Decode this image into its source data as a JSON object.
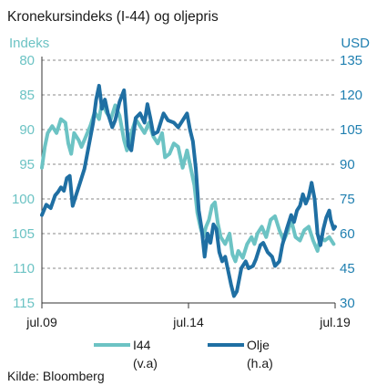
{
  "chart_data": {
    "type": "line",
    "title": "Kronekursindeks (I-44) og oljepris",
    "left_axis": {
      "label": "Indeks",
      "range": [
        80,
        115
      ],
      "inverted": true,
      "ticks": [
        "80",
        "85",
        "90",
        "95",
        "100",
        "105",
        "110",
        "115"
      ]
    },
    "right_axis": {
      "label": "USD",
      "range": [
        30,
        135
      ],
      "ticks": [
        "135",
        "120",
        "105",
        "90",
        "75",
        "60",
        "45",
        "30"
      ]
    },
    "x_axis": {
      "range": [
        "2009-07",
        "2019-07"
      ],
      "ticks": [
        "jul.09",
        "jul.14",
        "jul.19"
      ]
    },
    "grid": "dashed-horizontal",
    "legend": {
      "placement": "bottom",
      "items": [
        {
          "name": "I44",
          "sub": "(v.a)",
          "color": "#6cc3c4"
        },
        {
          "name": "Olje",
          "sub": "(h.a)",
          "color": "#1f6fa3"
        }
      ]
    },
    "source": "Kilde: Bloomberg",
    "series": [
      {
        "name": "I44",
        "axis": "left",
        "color": "#6cc3c4",
        "points": [
          [
            2009.5,
            95.5
          ],
          [
            2009.6,
            92.5
          ],
          [
            2009.7,
            90.5
          ],
          [
            2009.85,
            89.5
          ],
          [
            2010.0,
            90.5
          ],
          [
            2010.15,
            88.5
          ],
          [
            2010.3,
            89.0
          ],
          [
            2010.4,
            92.0
          ],
          [
            2010.5,
            93.5
          ],
          [
            2010.6,
            90.5
          ],
          [
            2010.75,
            91.5
          ],
          [
            2010.85,
            92.5
          ],
          [
            2011.0,
            91.0
          ],
          [
            2011.15,
            89.5
          ],
          [
            2011.3,
            87.5
          ],
          [
            2011.45,
            88.5
          ],
          [
            2011.55,
            86.0
          ],
          [
            2011.7,
            87.5
          ],
          [
            2011.85,
            88.5
          ],
          [
            2012.0,
            86.5
          ],
          [
            2012.15,
            88.0
          ],
          [
            2012.3,
            91.5
          ],
          [
            2012.4,
            93.0
          ],
          [
            2012.55,
            90.5
          ],
          [
            2012.7,
            88.5
          ],
          [
            2012.85,
            89.5
          ],
          [
            2013.0,
            90.5
          ],
          [
            2013.15,
            89.0
          ],
          [
            2013.3,
            91.0
          ],
          [
            2013.45,
            92.0
          ],
          [
            2013.6,
            90.5
          ],
          [
            2013.7,
            94.0
          ],
          [
            2013.85,
            93.5
          ],
          [
            2014.0,
            92.0
          ],
          [
            2014.15,
            92.5
          ],
          [
            2014.3,
            95.5
          ],
          [
            2014.45,
            93.0
          ],
          [
            2014.6,
            96.0
          ],
          [
            2014.7,
            98.0
          ],
          [
            2014.8,
            102.0
          ],
          [
            2014.9,
            104.0
          ],
          [
            2015.0,
            105.5
          ],
          [
            2015.1,
            104.0
          ],
          [
            2015.2,
            103.0
          ],
          [
            2015.3,
            101.0
          ],
          [
            2015.4,
            100.5
          ],
          [
            2015.5,
            103.5
          ],
          [
            2015.6,
            105.5
          ],
          [
            2015.75,
            106.5
          ],
          [
            2015.9,
            105.0
          ],
          [
            2016.0,
            108.0
          ],
          [
            2016.1,
            109.0
          ],
          [
            2016.2,
            107.5
          ],
          [
            2016.35,
            108.5
          ],
          [
            2016.5,
            106.5
          ],
          [
            2016.65,
            105.5
          ],
          [
            2016.75,
            106.5
          ],
          [
            2016.85,
            105.0
          ],
          [
            2017.0,
            104.0
          ],
          [
            2017.15,
            105.5
          ],
          [
            2017.3,
            103.0
          ],
          [
            2017.45,
            102.5
          ],
          [
            2017.6,
            104.5
          ],
          [
            2017.75,
            106.0
          ],
          [
            2017.9,
            104.5
          ],
          [
            2018.0,
            103.0
          ],
          [
            2018.15,
            105.5
          ],
          [
            2018.3,
            106.0
          ],
          [
            2018.45,
            104.5
          ],
          [
            2018.6,
            104.0
          ],
          [
            2018.75,
            106.0
          ],
          [
            2018.9,
            107.5
          ],
          [
            2019.0,
            105.5
          ],
          [
            2019.15,
            106.0
          ],
          [
            2019.3,
            105.5
          ],
          [
            2019.45,
            106.5
          ]
        ]
      },
      {
        "name": "Olje",
        "axis": "right",
        "color": "#1f6fa3",
        "points": [
          [
            2009.5,
            68.0
          ],
          [
            2009.65,
            72.5
          ],
          [
            2009.8,
            71.0
          ],
          [
            2009.95,
            76.5
          ],
          [
            2010.05,
            78.0
          ],
          [
            2010.15,
            80.0
          ],
          [
            2010.25,
            78.5
          ],
          [
            2010.35,
            84.0
          ],
          [
            2010.45,
            85.0
          ],
          [
            2010.55,
            72.0
          ],
          [
            2010.65,
            76.0
          ],
          [
            2010.8,
            82.0
          ],
          [
            2010.95,
            88.0
          ],
          [
            2011.1,
            98.0
          ],
          [
            2011.25,
            108.0
          ],
          [
            2011.35,
            118.0
          ],
          [
            2011.45,
            124.0
          ],
          [
            2011.55,
            114.0
          ],
          [
            2011.65,
            118.0
          ],
          [
            2011.75,
            112.0
          ],
          [
            2011.9,
            106.0
          ],
          [
            2012.0,
            109.0
          ],
          [
            2012.15,
            117.0
          ],
          [
            2012.3,
            122.0
          ],
          [
            2012.45,
            98.0
          ],
          [
            2012.55,
            96.0
          ],
          [
            2012.7,
            110.0
          ],
          [
            2012.85,
            112.0
          ],
          [
            2013.0,
            108.0
          ],
          [
            2013.1,
            116.0
          ],
          [
            2013.2,
            110.0
          ],
          [
            2013.3,
            103.0
          ],
          [
            2013.45,
            104.0
          ],
          [
            2013.55,
            108.0
          ],
          [
            2013.65,
            112.0
          ],
          [
            2013.8,
            109.0
          ],
          [
            2014.0,
            108.0
          ],
          [
            2014.15,
            106.0
          ],
          [
            2014.3,
            109.0
          ],
          [
            2014.45,
            112.0
          ],
          [
            2014.55,
            105.0
          ],
          [
            2014.65,
            100.0
          ],
          [
            2014.75,
            88.0
          ],
          [
            2014.85,
            70.0
          ],
          [
            2014.95,
            62.0
          ],
          [
            2015.05,
            50.0
          ],
          [
            2015.15,
            60.0
          ],
          [
            2015.25,
            56.0
          ],
          [
            2015.35,
            64.0
          ],
          [
            2015.45,
            62.0
          ],
          [
            2015.55,
            52.0
          ],
          [
            2015.65,
            48.0
          ],
          [
            2015.75,
            50.0
          ],
          [
            2015.85,
            44.0
          ],
          [
            2015.95,
            38.0
          ],
          [
            2016.05,
            33.0
          ],
          [
            2016.15,
            35.0
          ],
          [
            2016.3,
            45.0
          ],
          [
            2016.45,
            48.0
          ],
          [
            2016.55,
            45.0
          ],
          [
            2016.7,
            46.0
          ],
          [
            2016.8,
            49.0
          ],
          [
            2016.95,
            55.0
          ],
          [
            2017.05,
            56.0
          ],
          [
            2017.2,
            52.0
          ],
          [
            2017.35,
            50.0
          ],
          [
            2017.45,
            46.0
          ],
          [
            2017.6,
            48.0
          ],
          [
            2017.7,
            55.0
          ],
          [
            2017.85,
            62.0
          ],
          [
            2018.0,
            68.0
          ],
          [
            2018.1,
            65.0
          ],
          [
            2018.2,
            70.0
          ],
          [
            2018.3,
            72.0
          ],
          [
            2018.4,
            77.0
          ],
          [
            2018.5,
            73.0
          ],
          [
            2018.6,
            76.0
          ],
          [
            2018.7,
            82.0
          ],
          [
            2018.8,
            75.0
          ],
          [
            2018.9,
            60.0
          ],
          [
            2019.0,
            55.0
          ],
          [
            2019.1,
            62.0
          ],
          [
            2019.2,
            67.0
          ],
          [
            2019.3,
            70.0
          ],
          [
            2019.35,
            66.0
          ],
          [
            2019.45,
            62.0
          ],
          [
            2019.5,
            63.0
          ]
        ]
      }
    ]
  }
}
